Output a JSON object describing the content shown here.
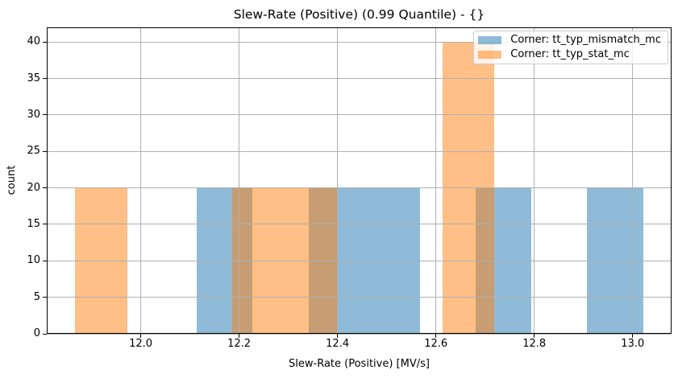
{
  "chart_data": {
    "type": "histogram",
    "title": "Slew-Rate (Positive) (0.99 Quantile) - {}",
    "xlabel": "Slew-Rate (Positive) [MV/s]",
    "ylabel": "count",
    "xlim": [
      11.809,
      13.079
    ],
    "ylim": [
      0,
      42
    ],
    "grid": true,
    "grid_color": "#b0b0b0",
    "background_color": "#ffffff",
    "axis_color": "#000000",
    "x_ticks": {
      "values": [
        12.0,
        12.2,
        12.4,
        12.6,
        12.8,
        13.0
      ],
      "labels": [
        "12.0",
        "12.2",
        "12.4",
        "12.6",
        "12.8",
        "13.0"
      ]
    },
    "y_ticks": {
      "values": [
        0,
        5,
        10,
        15,
        20,
        25,
        30,
        35,
        40
      ],
      "labels": [
        "0",
        "5",
        "10",
        "15",
        "20",
        "25",
        "30",
        "35",
        "40"
      ]
    },
    "legend": {
      "position": "upper right"
    },
    "series": [
      {
        "name": "Corner: tt_typ_mismatch_mc",
        "base_color": "#1f77b4",
        "alpha": 0.5,
        "rgba": "rgba(31,119,180,0.5)",
        "bin_edges": [
          12.114,
          12.227,
          12.341,
          12.454,
          12.567,
          12.681,
          12.794,
          12.907,
          13.021
        ],
        "counts": [
          20,
          0,
          20,
          20,
          0,
          20,
          0,
          20
        ]
      },
      {
        "name": "Corner: tt_typ_stat_mc",
        "base_color": "#ff7f0e",
        "alpha": 0.5,
        "rgba": "rgba(255,127,14,0.5)",
        "bin_edges": [
          11.867,
          11.973,
          12.08,
          12.186,
          12.293,
          12.399,
          12.506,
          12.613,
          12.719
        ],
        "counts": [
          20,
          0,
          0,
          20,
          20,
          0,
          0,
          40
        ]
      }
    ]
  }
}
